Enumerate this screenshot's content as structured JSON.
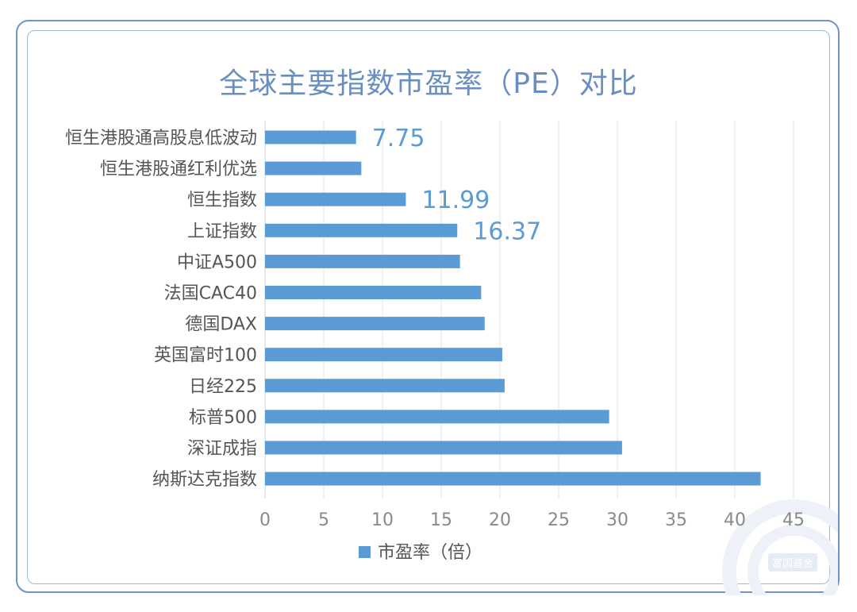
{
  "chart_data": {
    "type": "bar",
    "orientation": "horizontal",
    "title": "全球主要指数市盈率（PE）对比",
    "categories": [
      "恒生港股通高股息低波动",
      "恒生港股通红利优选",
      "恒生指数",
      "上证指数",
      "中证A500",
      "法国CAC40",
      "德国DAX",
      "英国富时100",
      "日经225",
      "标普500",
      "深证成指",
      "纳斯达克指数"
    ],
    "series": [
      {
        "name": "市盈率（倍）",
        "values": [
          7.75,
          8.2,
          11.99,
          16.37,
          16.6,
          18.4,
          18.7,
          20.2,
          20.4,
          29.3,
          30.4,
          42.2
        ]
      }
    ],
    "data_labels": [
      "7.75",
      "",
      "11.99",
      "16.37",
      "",
      "",
      "",
      "",
      "",
      "",
      "",
      ""
    ],
    "xticks": [
      "0",
      "5",
      "10",
      "15",
      "20",
      "25",
      "30",
      "35",
      "40",
      "45"
    ],
    "xlim": [
      0,
      45
    ],
    "grid": "vertical",
    "legend_position": "bottom-center",
    "colors": {
      "bar": "#5b9bd5",
      "title": "#6a8ec0",
      "label": "#5b9bd5",
      "frame": "#6f95c6"
    }
  },
  "watermark": {
    "text": "富国基金"
  }
}
